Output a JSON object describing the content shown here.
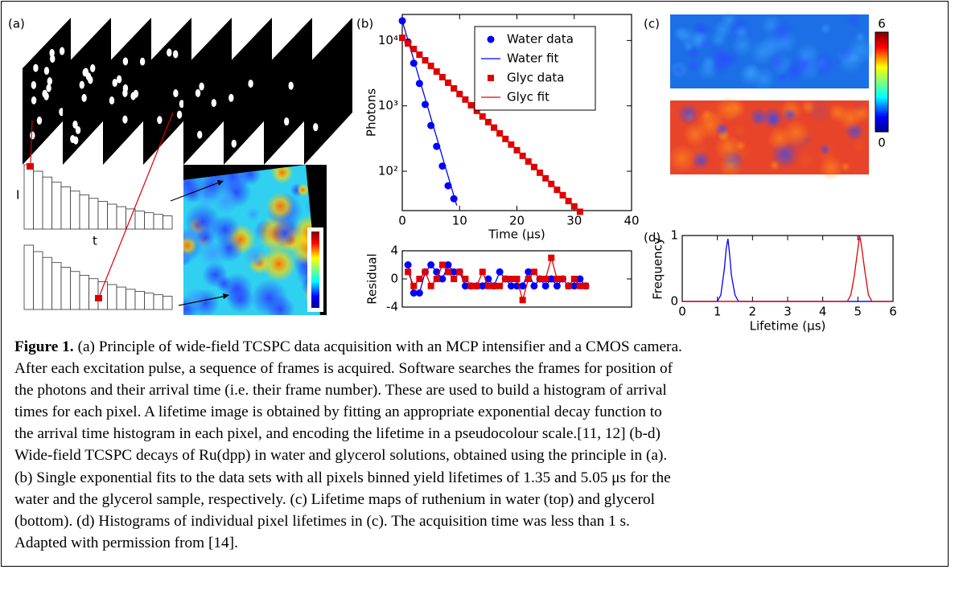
{
  "panel_labels": [
    "(a)",
    "(b)",
    "(c)",
    "(d)"
  ],
  "panel_a": {
    "axis_labels": [
      "I",
      "t"
    ]
  },
  "panel_c": {
    "colorbar_ticks": [
      6,
      0
    ]
  },
  "chart_data": [
    {
      "type": "line",
      "log_y": true,
      "x_label": "Time (μs)",
      "y_label": "Photons",
      "xlim": [
        0,
        40
      ],
      "xticks": [
        0,
        10,
        20,
        30,
        40
      ],
      "ylim": [
        25,
        25000
      ],
      "yticks": [
        {
          "value": 100,
          "label": "10²"
        },
        {
          "value": 1000,
          "label": "10³"
        },
        {
          "value": 10000,
          "label": "10⁴"
        }
      ],
      "legend": "upper right",
      "series": [
        {
          "name": "Water data",
          "color": "#0000ff",
          "style": "circle",
          "x": [
            0,
            1,
            2,
            3,
            4,
            5,
            6,
            7,
            8,
            9
          ],
          "values": [
            20000,
            9500,
            4500,
            2200,
            1050,
            500,
            240,
            120,
            60,
            38
          ]
        },
        {
          "name": "Water fit",
          "color": "#0000ff",
          "style": "line",
          "x": [
            0,
            9.5
          ],
          "values": [
            20000,
            30
          ]
        },
        {
          "name": "Glyc data",
          "color": "#e00000",
          "style": "square",
          "x": [
            0,
            1,
            2,
            3,
            4,
            5,
            6,
            7,
            8,
            9,
            10,
            11,
            12,
            13,
            14,
            15,
            16,
            17,
            18,
            19,
            20,
            21,
            22,
            23,
            24,
            25,
            26,
            27,
            28,
            29,
            30,
            31
          ],
          "values": [
            11000,
            9020,
            7400,
            6070,
            4980,
            4090,
            3350,
            2750,
            2260,
            1850,
            1520,
            1250,
            1020,
            840,
            690,
            565,
            465,
            380,
            312,
            256,
            210,
            172,
            141,
            116,
            95,
            78,
            64,
            52,
            43,
            35,
            29,
            24
          ]
        },
        {
          "name": "Glyc fit",
          "color": "#e00000",
          "style": "line",
          "x": [
            0,
            31
          ],
          "values": [
            11000,
            24
          ]
        }
      ]
    },
    {
      "type": "line",
      "y_label": "Residual",
      "xlim": [
        0,
        40
      ],
      "ylim": [
        -4,
        4
      ],
      "yticks": [
        -4,
        0,
        4
      ],
      "series": [
        {
          "color": "#0000ff",
          "style": "circle-line",
          "x": [
            1,
            2,
            3,
            4,
            5,
            6,
            7,
            8,
            9,
            10,
            11,
            12,
            13,
            14,
            15,
            16,
            17,
            18,
            19,
            20,
            21,
            22,
            23,
            24,
            25,
            26,
            27,
            28,
            29,
            30,
            31,
            32
          ],
          "values": [
            2,
            -2,
            -2,
            1,
            2,
            1,
            0,
            2,
            1,
            1,
            -1,
            -1,
            -1,
            -1,
            0,
            -1,
            1,
            0,
            -1,
            -1,
            -1,
            1,
            -1,
            0,
            -1,
            0,
            -1,
            0,
            -1,
            -1,
            0,
            -1
          ]
        },
        {
          "color": "#e00000",
          "style": "square-line",
          "x": [
            1,
            2,
            3,
            4,
            5,
            6,
            7,
            8,
            9,
            10,
            11,
            12,
            13,
            14,
            15,
            16,
            17,
            18,
            19,
            20,
            21,
            22,
            23,
            24,
            25,
            26,
            27,
            28,
            29,
            30,
            31,
            32
          ],
          "values": [
            1,
            -1,
            0,
            1,
            -1,
            0,
            2,
            1,
            0,
            1,
            0,
            -1,
            -1,
            1,
            -1,
            -1,
            -1,
            0,
            0,
            0,
            -3,
            0,
            1,
            0,
            0,
            3,
            0,
            0,
            -1,
            0,
            -1,
            -1
          ]
        }
      ]
    },
    {
      "type": "line",
      "x_label": "Lifetime (μs)",
      "y_label": "Frequency",
      "xlim": [
        0,
        6
      ],
      "xticks": [
        0,
        1,
        2,
        3,
        4,
        5,
        6
      ],
      "ylim": [
        0,
        1
      ],
      "yticks": [
        0,
        1
      ],
      "series": [
        {
          "color": "#0000ff",
          "style": "line",
          "x": [
            0,
            1,
            1.1,
            1.2,
            1.25,
            1.3,
            1.35,
            1.4,
            1.5,
            1.6,
            6
          ],
          "values": [
            0,
            0,
            0.1,
            0.5,
            0.8,
            0.95,
            0.7,
            0.4,
            0.1,
            0,
            0
          ]
        },
        {
          "color": "#e00000",
          "style": "line",
          "x": [
            0,
            4.7,
            4.8,
            4.9,
            5.0,
            5.05,
            5.1,
            5.2,
            5.3,
            5.4,
            6
          ],
          "values": [
            0,
            0,
            0.1,
            0.4,
            0.8,
            1,
            0.85,
            0.45,
            0.1,
            0,
            0
          ]
        }
      ]
    }
  ],
  "caption": {
    "label": "Figure 1.",
    "lines": [
      "(a) Principle of wide-field TCSPC data acquisition with an MCP intensifier and a CMOS camera.",
      "After each excitation pulse, a sequence of frames is acquired. Software searches the frames for position of",
      "the photons and their arrival time (i.e. their frame number). These are used to build a histogram of arrival",
      "times for each pixel. A lifetime image is obtained by fitting an appropriate exponential decay function to",
      "the arrival time histogram in each pixel, and encoding the lifetime in a pseudocolour scale.[11, 12] (b-d)",
      "Wide-field TCSPC decays of Ru(dpp) in water and glycerol solutions, obtained using the principle in (a).",
      "(b) Single exponential fits to the data sets with all pixels binned yield lifetimes of 1.35 and 5.05 μs for the",
      "water and the glycerol sample, respectively. (c) Lifetime maps of ruthenium in water (top) and glycerol",
      "(bottom). (d) Histograms of individual pixel lifetimes in (c). The acquisition time was less than 1 s.",
      "Adapted with permission from [14]."
    ]
  }
}
